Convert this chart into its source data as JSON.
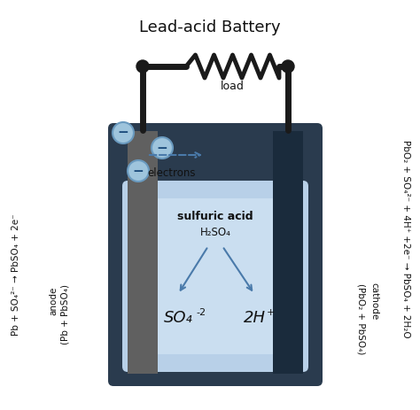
{
  "title": "Lead-acid Battery",
  "bg_color": "#ffffff",
  "battery_outer_color": "#2a3b4e",
  "acid_fill_color": "#b8d0e8",
  "acid_fill_color2": "#d4e6f5",
  "anode_color": "#606060",
  "cathode_color": "#1a2b3c",
  "wire_color": "#1a1a1a",
  "electron_circle_color": "#9ec4dc",
  "electron_circle_edge": "#6a9abf",
  "arrow_color": "#4a7aaa",
  "text_color": "#111111",
  "title_fontsize": 13,
  "side_text_left": "Pb + SO₄²⁻ → PbSO₄ + 2e⁻",
  "side_text_left2": "anode",
  "side_text_left3": "(Pb + PbSO₄)",
  "side_text_right": "PbO₂ + SO₄²⁻ + 4H⁺ +2e⁻ → PbSO₄ + 2H₂O",
  "side_text_right2": "cathode",
  "side_text_right3": "(PbO₂ + PbSO₄)",
  "acid_label1": "sulfuric acid",
  "acid_label2": "H₂SO₄",
  "ion1": "SO₄",
  "ion1_super": "-2",
  "ion2": "2H",
  "ion2_super": "+",
  "electrons_label": "electrons",
  "load_label": "load"
}
